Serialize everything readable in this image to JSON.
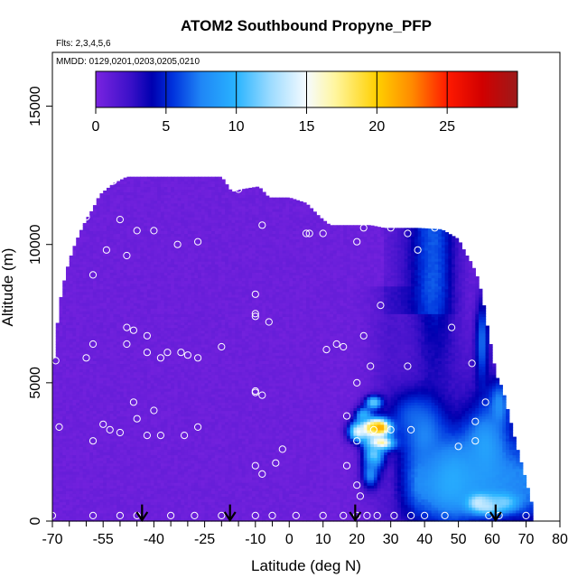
{
  "chart_data": {
    "type": "heatmap",
    "title": "ATOM2 Southbound Propyne_PFP",
    "notes": [
      "Flts: 2,3,4,5,6",
      "MMDD: 0129,0201,0203,0205,0210"
    ],
    "xlabel": "Latitude (deg N)",
    "ylabel": "Altitude (m)",
    "xlim": [
      -70,
      80
    ],
    "ylim": [
      0,
      17500
    ],
    "x_ticks": [
      -70,
      -55,
      -40,
      -25,
      -10,
      0,
      10,
      20,
      30,
      40,
      50,
      60,
      70,
      80
    ],
    "x_tick_labels": [
      "-70",
      "-55",
      "-40",
      "-25",
      "-10",
      "0",
      "10",
      "20",
      "30",
      "40",
      "50",
      "60",
      "70",
      "80"
    ],
    "x_minor_ticks": [
      -65,
      -60,
      -50,
      -45,
      -35,
      -30,
      -20,
      -15,
      -5
    ],
    "y_ticks": [
      0,
      5000,
      10000,
      15000
    ],
    "y_tick_labels": [
      "0",
      "5000",
      "10000",
      "15000"
    ],
    "colorbar": {
      "min": 0,
      "max": 30,
      "ticks": [
        0,
        5,
        10,
        15,
        20,
        25
      ],
      "tick_labels": [
        "0",
        "5",
        "10",
        "15",
        "20",
        "25"
      ],
      "colors": [
        {
          "v": 0,
          "c": "#7a24e0"
        },
        {
          "v": 2.5,
          "c": "#3a10c8"
        },
        {
          "v": 4,
          "c": "#0000b0"
        },
        {
          "v": 5.5,
          "c": "#0033dd"
        },
        {
          "v": 7.5,
          "c": "#1f86f6"
        },
        {
          "v": 10,
          "c": "#29b4ff"
        },
        {
          "v": 12.5,
          "c": "#9fdcff"
        },
        {
          "v": 15,
          "c": "#f6fbff"
        },
        {
          "v": 17,
          "c": "#fff6a0"
        },
        {
          "v": 20,
          "c": "#ffd000"
        },
        {
          "v": 22.5,
          "c": "#ff8a00"
        },
        {
          "v": 25,
          "c": "#ff1a00"
        },
        {
          "v": 27.5,
          "c": "#d10000"
        },
        {
          "v": 30,
          "c": "#9c1a1a"
        }
      ]
    },
    "field_top": [
      [
        -70,
        0
      ],
      [
        -69.5,
        5900
      ],
      [
        -68,
        7800
      ],
      [
        -66,
        9000
      ],
      [
        -64,
        9800
      ],
      [
        -62,
        10400
      ],
      [
        -60,
        10900
      ],
      [
        -58,
        11300
      ],
      [
        -56,
        11800
      ],
      [
        -52,
        12200
      ],
      [
        -48,
        12450
      ],
      [
        -20,
        12450
      ],
      [
        -17,
        11900
      ],
      [
        -14,
        12000
      ],
      [
        -9,
        12100
      ],
      [
        -6,
        11700
      ],
      [
        0,
        11700
      ],
      [
        5,
        11500
      ],
      [
        9,
        11000
      ],
      [
        12,
        10700
      ],
      [
        24,
        10700
      ],
      [
        28,
        10600
      ],
      [
        38,
        10600
      ],
      [
        45,
        10550
      ],
      [
        50,
        10200
      ],
      [
        52,
        9700
      ],
      [
        54,
        9300
      ],
      [
        56,
        8700
      ],
      [
        57.5,
        7800
      ],
      [
        59,
        6700
      ],
      [
        60,
        6100
      ],
      [
        61,
        5300
      ],
      [
        63,
        4800
      ],
      [
        65,
        3800
      ],
      [
        67,
        2800
      ],
      [
        69,
        1900
      ],
      [
        70.5,
        1200
      ],
      [
        71.5,
        700
      ],
      [
        72,
        400
      ],
      [
        72,
        0
      ]
    ],
    "hotspots": [
      {
        "x": 25,
        "y": 4300,
        "rx": 2.5,
        "ry": 250,
        "v": 12
      },
      {
        "x": 27,
        "y": 3400,
        "rx": 3.5,
        "ry": 300,
        "v": 27
      },
      {
        "x": 24,
        "y": 3400,
        "rx": 3,
        "ry": 300,
        "v": 22
      },
      {
        "x": 20.5,
        "y": 3250,
        "rx": 3,
        "ry": 350,
        "v": 15
      },
      {
        "x": 27,
        "y": 2850,
        "rx": 4,
        "ry": 250,
        "v": 20
      },
      {
        "x": 25,
        "y": 2400,
        "rx": 3,
        "ry": 500,
        "v": 12
      },
      {
        "x": 24,
        "y": 1700,
        "rx": 2.5,
        "ry": 500,
        "v": 8
      },
      {
        "x": 22,
        "y": 3850,
        "rx": 2.5,
        "ry": 300,
        "v": 10
      },
      {
        "x": 56,
        "y": 700,
        "rx": 3.5,
        "ry": 300,
        "v": 18
      },
      {
        "x": 59,
        "y": 600,
        "rx": 4,
        "ry": 280,
        "v": 16
      },
      {
        "x": 63,
        "y": 700,
        "rx": 5,
        "ry": 350,
        "v": 12
      },
      {
        "x": 48,
        "y": 1500,
        "rx": 8,
        "ry": 1400,
        "v": 9.5
      },
      {
        "x": 58,
        "y": 2700,
        "rx": 6,
        "ry": 1500,
        "v": 9
      },
      {
        "x": 62,
        "y": 4200,
        "rx": 3,
        "ry": 900,
        "v": 8
      },
      {
        "x": 57,
        "y": 6500,
        "rx": 2,
        "ry": 1600,
        "v": 7
      },
      {
        "x": 36,
        "y": 3800,
        "rx": 7,
        "ry": 900,
        "v": 6
      },
      {
        "x": 40,
        "y": 3100,
        "rx": 6,
        "ry": 1200,
        "v": 7.5
      }
    ],
    "samples": [
      [
        -64,
        12300
      ],
      [
        -60,
        11000
      ],
      [
        -54,
        9800
      ],
      [
        -52,
        12300
      ],
      [
        -50,
        10900
      ],
      [
        -48,
        9600
      ],
      [
        -45,
        10500
      ],
      [
        -40,
        10500
      ],
      [
        -33,
        10000
      ],
      [
        -27,
        10100
      ],
      [
        -15,
        12000
      ],
      [
        -8,
        10700
      ],
      [
        5,
        10400
      ],
      [
        6,
        10400
      ],
      [
        10,
        10400
      ],
      [
        20,
        10100
      ],
      [
        22,
        10600
      ],
      [
        30,
        10600
      ],
      [
        35,
        10400
      ],
      [
        43,
        10600
      ],
      [
        51,
        10300
      ],
      [
        38,
        9800
      ],
      [
        -58,
        8900
      ],
      [
        -10,
        8200
      ],
      [
        -10,
        7500
      ],
      [
        -10,
        7400
      ],
      [
        -6,
        7200
      ],
      [
        27,
        7800
      ],
      [
        -48,
        7000
      ],
      [
        -46,
        6900
      ],
      [
        -42,
        6700
      ],
      [
        -58,
        6400
      ],
      [
        -48,
        6400
      ],
      [
        -42,
        6100
      ],
      [
        -36,
        6100
      ],
      [
        -32,
        6100
      ],
      [
        -30,
        6000
      ],
      [
        -27,
        5900
      ],
      [
        -69,
        5800
      ],
      [
        -60,
        5900
      ],
      [
        -38,
        5900
      ],
      [
        -20,
        6300
      ],
      [
        11,
        6200
      ],
      [
        14,
        6400
      ],
      [
        16,
        6300
      ],
      [
        22,
        6700
      ],
      [
        24,
        5600
      ],
      [
        -10,
        4700
      ],
      [
        -10,
        4650
      ],
      [
        -8,
        4550
      ],
      [
        20,
        5000
      ],
      [
        35,
        5600
      ],
      [
        -46,
        4300
      ],
      [
        -40,
        4000
      ],
      [
        -45,
        3700
      ],
      [
        -55,
        3500
      ],
      [
        -53,
        3300
      ],
      [
        -50,
        3200
      ],
      [
        -42,
        3100
      ],
      [
        -38,
        3100
      ],
      [
        -31,
        3100
      ],
      [
        -27,
        3400
      ],
      [
        -68,
        3400
      ],
      [
        -58,
        2900
      ],
      [
        17,
        3800
      ],
      [
        20,
        2900
      ],
      [
        25,
        3300
      ],
      [
        30,
        3300
      ],
      [
        36,
        3300
      ],
      [
        -2,
        2600
      ],
      [
        -4,
        2100
      ],
      [
        -10,
        2000
      ],
      [
        -8,
        1700
      ],
      [
        17,
        2000
      ],
      [
        20,
        1300
      ],
      [
        21,
        900
      ],
      [
        -70,
        200
      ],
      [
        -58,
        200
      ],
      [
        -50,
        200
      ],
      [
        -45,
        200
      ],
      [
        -35,
        200
      ],
      [
        -28,
        200
      ],
      [
        -20,
        200
      ],
      [
        -10,
        200
      ],
      [
        -5,
        200
      ],
      [
        2,
        200
      ],
      [
        10,
        200
      ],
      [
        16,
        200
      ],
      [
        20,
        200
      ],
      [
        23,
        200
      ],
      [
        26,
        200
      ],
      [
        31,
        200
      ],
      [
        36,
        200
      ],
      [
        40,
        200
      ],
      [
        46,
        200
      ],
      [
        48,
        7000
      ],
      [
        54,
        5700
      ],
      [
        50,
        2700
      ],
      [
        58,
        4300
      ],
      [
        55,
        3600
      ],
      [
        55,
        2900
      ],
      [
        59,
        200
      ],
      [
        62,
        200
      ],
      [
        70,
        200
      ]
    ],
    "flight_markers": [
      -43.5,
      -17.5,
      19.5,
      61
    ]
  }
}
